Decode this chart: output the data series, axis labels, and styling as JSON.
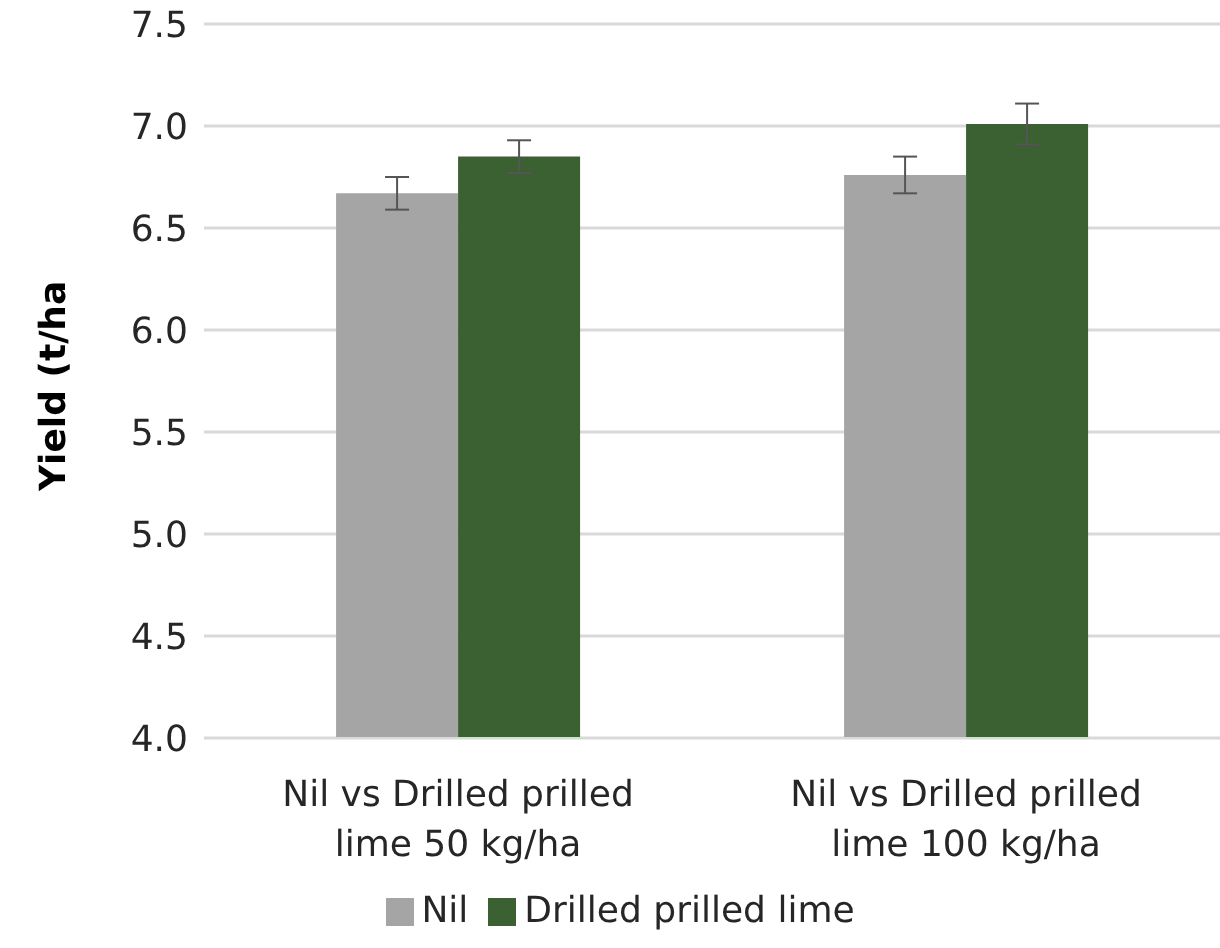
{
  "chart_data": {
    "type": "bar",
    "ylabel": "Yield (t/ha",
    "categories": [
      "Nil vs Drilled prilled lime 50 kg/ha",
      "Nil vs Drilled prilled lime 100 kg/ha"
    ],
    "series": [
      {
        "name": "Nil",
        "color": "#a5a5a5",
        "values": [
          6.67,
          6.76
        ],
        "errors": [
          0.08,
          0.09
        ]
      },
      {
        "name": "Drilled prilled lime",
        "color": "#3b6032",
        "values": [
          6.85,
          7.01
        ],
        "errors": [
          0.08,
          0.1
        ]
      }
    ],
    "ylim": [
      4.0,
      7.5
    ],
    "yticks": [
      {
        "value": 4,
        "label": "4.0"
      },
      {
        "value": 4.5,
        "label": "4.5"
      },
      {
        "value": 5,
        "label": "5.0"
      },
      {
        "value": 5.5,
        "label": "5.5"
      },
      {
        "value": 6,
        "label": "6.0"
      },
      {
        "value": 6.5,
        "label": "6.5"
      },
      {
        "value": 7,
        "label": "7.0"
      },
      {
        "value": 7.5,
        "label": "7.5"
      }
    ],
    "grid": "y",
    "legend": "bottom"
  }
}
